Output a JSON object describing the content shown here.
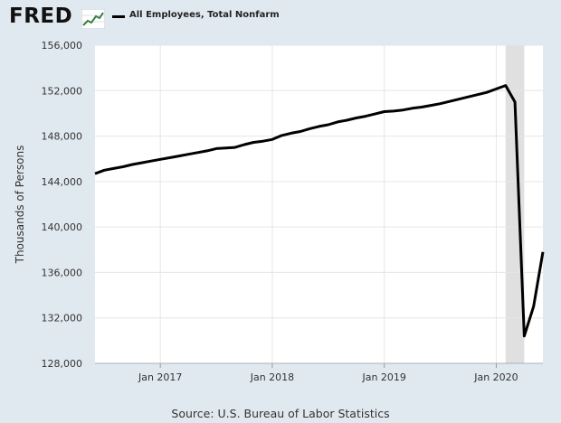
{
  "header": {
    "logo_text": "FRED",
    "logo_icon": "trend-graph-icon"
  },
  "chart_data": {
    "type": "line",
    "title": "",
    "xlabel": "",
    "ylabel": "Thousands of Persons",
    "ylim": [
      128000,
      156000
    ],
    "yticks": [
      128000,
      132000,
      136000,
      140000,
      144000,
      148000,
      152000,
      156000
    ],
    "ytick_labels": [
      "128,000",
      "132,000",
      "136,000",
      "140,000",
      "144,000",
      "148,000",
      "152,000",
      "156,000"
    ],
    "xlim": [
      "2016-06",
      "2020-06"
    ],
    "xticks": [
      "2017-01",
      "2018-01",
      "2019-01",
      "2020-01"
    ],
    "xtick_labels": [
      "Jan 2017",
      "Jan 2018",
      "Jan 2019",
      "Jan 2020"
    ],
    "grid": true,
    "legend": "top-left",
    "recession_shading": {
      "start": "2020-02",
      "end": "2020-04",
      "color": "#e0e0e0"
    },
    "series": [
      {
        "name": "All Employees, Total Nonfarm",
        "color": "#000000",
        "x": [
          "2016-06",
          "2016-07",
          "2016-08",
          "2016-09",
          "2016-10",
          "2016-11",
          "2016-12",
          "2017-01",
          "2017-02",
          "2017-03",
          "2017-04",
          "2017-05",
          "2017-06",
          "2017-07",
          "2017-08",
          "2017-09",
          "2017-10",
          "2017-11",
          "2017-12",
          "2018-01",
          "2018-02",
          "2018-03",
          "2018-04",
          "2018-05",
          "2018-06",
          "2018-07",
          "2018-08",
          "2018-09",
          "2018-10",
          "2018-11",
          "2018-12",
          "2019-01",
          "2019-02",
          "2019-03",
          "2019-04",
          "2019-05",
          "2019-06",
          "2019-07",
          "2019-08",
          "2019-09",
          "2019-10",
          "2019-11",
          "2019-12",
          "2020-01",
          "2020-02",
          "2020-03",
          "2020-04",
          "2020-05",
          "2020-06"
        ],
        "values": [
          144700,
          145000,
          145150,
          145300,
          145500,
          145650,
          145800,
          145950,
          146100,
          146250,
          146400,
          146550,
          146700,
          146900,
          146950,
          147000,
          147250,
          147450,
          147550,
          147700,
          148050,
          148250,
          148400,
          148650,
          148850,
          149000,
          149250,
          149400,
          149600,
          149750,
          149950,
          150150,
          150200,
          150300,
          150450,
          150550,
          150700,
          150850,
          151050,
          151250,
          151450,
          151650,
          151850,
          152150,
          152450,
          151000,
          130400,
          133000,
          137800
        ]
      }
    ]
  },
  "source": "Source: U.S. Bureau of Labor Statistics"
}
